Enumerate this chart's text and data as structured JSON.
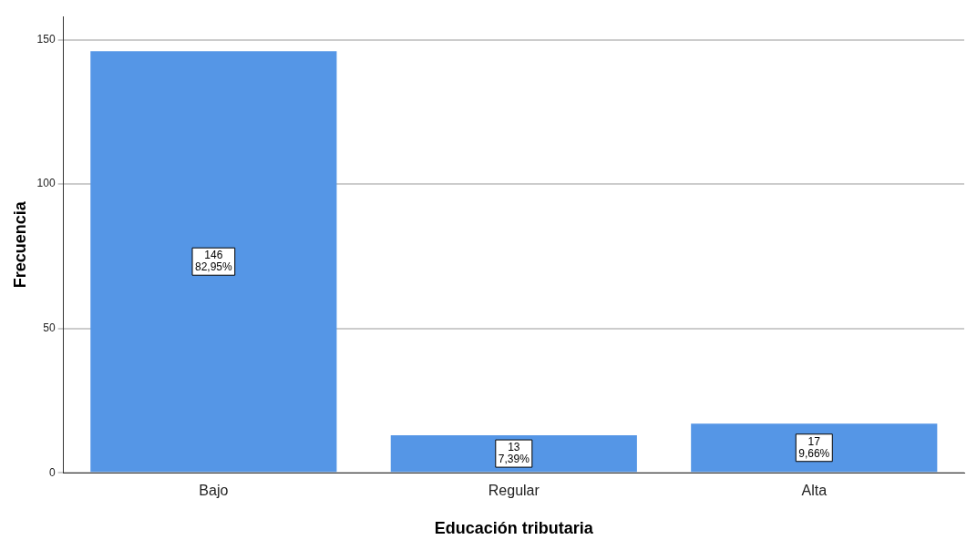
{
  "chart_data": {
    "type": "bar",
    "xlabel": "Educación tributaria",
    "ylabel": "Frecuencia",
    "categories": [
      "Bajo",
      "Regular",
      "Alta"
    ],
    "values": [
      146,
      13,
      17
    ],
    "color": "#5596e6",
    "value_labels": [
      "146\n82,95%",
      "13\n7,39%",
      "17\n9,66%"
    ],
    "ylim": [
      0,
      158
    ],
    "yticks": [
      0,
      50,
      100,
      150
    ],
    "grid": "y",
    "legend": false
  }
}
